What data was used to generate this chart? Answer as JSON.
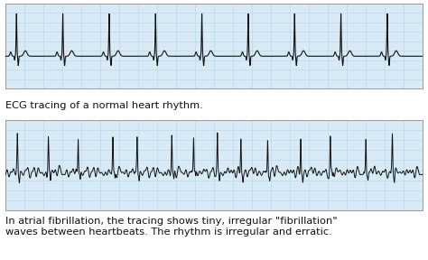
{
  "bg_color": "#ffffff",
  "grid_color": "#b8d8e8",
  "ecg_color": "#111111",
  "box_edge_color": "#999999",
  "panel_bg": "#d8eaf5",
  "label1": "ECG tracing of a normal heart rhythm.",
  "label2": "In atrial fibrillation, the tracing shows tiny, irregular \"fibrillation\"\nwaves between heartbeats. The rhythm is irregular and erratic.",
  "label_fontsize": 8.2,
  "fig_width": 4.74,
  "fig_height": 2.88,
  "dpi": 100
}
